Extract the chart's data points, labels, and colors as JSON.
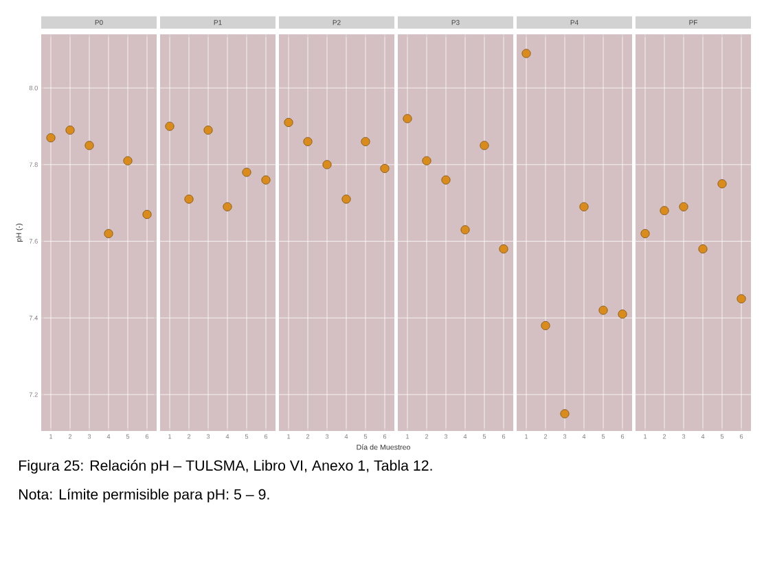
{
  "chart_data": [
    {
      "type": "scatter",
      "title": "P0",
      "ylabel": "pH (-)",
      "x": [
        1,
        2,
        3,
        4,
        5,
        6
      ],
      "values": [
        7.87,
        7.89,
        7.85,
        7.62,
        7.81,
        7.67
      ],
      "color": "#d98c1c",
      "xlim": [
        0.5,
        6.5
      ],
      "xticks": [
        1,
        2,
        3,
        4,
        5,
        6
      ],
      "ylim": [
        7.105,
        8.14
      ],
      "yticks": [
        7.2,
        7.4,
        7.6,
        7.8,
        {
          "value": 8.0,
          "label": "8.0"
        }
      ],
      "grid": true,
      "annotations": [
        "Figura 25: Relación pH – TULSMA, Libro VI, Anexo 1, Tabla 12.",
        "Nota: Límite permisible para pH: 5 – 9."
      ]
    },
    {
      "type": "scatter",
      "title": "P1",
      "x": [
        1,
        2,
        3,
        4,
        5,
        6
      ],
      "values": [
        7.9,
        7.71,
        7.89,
        7.69,
        7.78,
        7.76
      ],
      "color": "#d98c1c",
      "xlim": [
        0.5,
        6.5
      ],
      "xticks": [
        1,
        2,
        3,
        4,
        5,
        6
      ],
      "ylim": [
        7.105,
        8.14
      ],
      "yticks": [
        7.2,
        7.4,
        7.6,
        7.8,
        8.0
      ],
      "grid": true,
      "tick_labels": "x"
    },
    {
      "type": "scatter",
      "title": "P2",
      "xlabel": "Día de Muestreo",
      "x": [
        1,
        2,
        3,
        4,
        5,
        6
      ],
      "values": [
        7.91,
        7.86,
        7.8,
        7.71,
        7.86,
        7.79
      ],
      "color": "#d98c1c",
      "xlim": [
        0.5,
        6.5
      ],
      "xticks": [
        1,
        2,
        3,
        4,
        5,
        6
      ],
      "ylim": [
        7.105,
        8.14
      ],
      "yticks": [
        7.2,
        7.4,
        7.6,
        7.8,
        8.0
      ],
      "grid": true,
      "tick_labels": "x"
    },
    {
      "type": "scatter",
      "title": "P3",
      "x": [
        1,
        2,
        3,
        4,
        5,
        6
      ],
      "values": [
        7.92,
        7.81,
        7.76,
        7.63,
        7.85,
        7.58
      ],
      "color": "#d98c1c",
      "xlim": [
        0.5,
        6.5
      ],
      "xticks": [
        1,
        2,
        3,
        4,
        5,
        6
      ],
      "ylim": [
        7.105,
        8.14
      ],
      "yticks": [
        7.2,
        7.4,
        7.6,
        7.8,
        8.0
      ],
      "grid": true,
      "tick_labels": "x"
    },
    {
      "type": "scatter",
      "title": "P4",
      "x": [
        1,
        2,
        3,
        4,
        5,
        6
      ],
      "values": [
        8.09,
        7.38,
        7.15,
        7.69,
        7.42,
        7.41
      ],
      "color": "#d98c1c",
      "xlim": [
        0.5,
        6.5
      ],
      "xticks": [
        1,
        2,
        3,
        4,
        5,
        6
      ],
      "ylim": [
        7.105,
        8.14
      ],
      "yticks": [
        7.2,
        7.4,
        7.6,
        7.8,
        8.0
      ],
      "grid": true,
      "tick_labels": "x"
    },
    {
      "type": "scatter",
      "title": "PF",
      "x": [
        1,
        2,
        3,
        4,
        5,
        6
      ],
      "values": [
        7.62,
        7.68,
        7.69,
        7.58,
        7.75,
        7.45
      ],
      "color": "#d98c1c",
      "xlim": [
        0.5,
        6.5
      ],
      "xticks": [
        1,
        2,
        3,
        4,
        5,
        6
      ],
      "ylim": [
        7.105,
        8.14
      ],
      "yticks": [
        7.2,
        7.4,
        7.6,
        7.8,
        8.0
      ],
      "grid": true,
      "tick_labels": "x"
    }
  ]
}
